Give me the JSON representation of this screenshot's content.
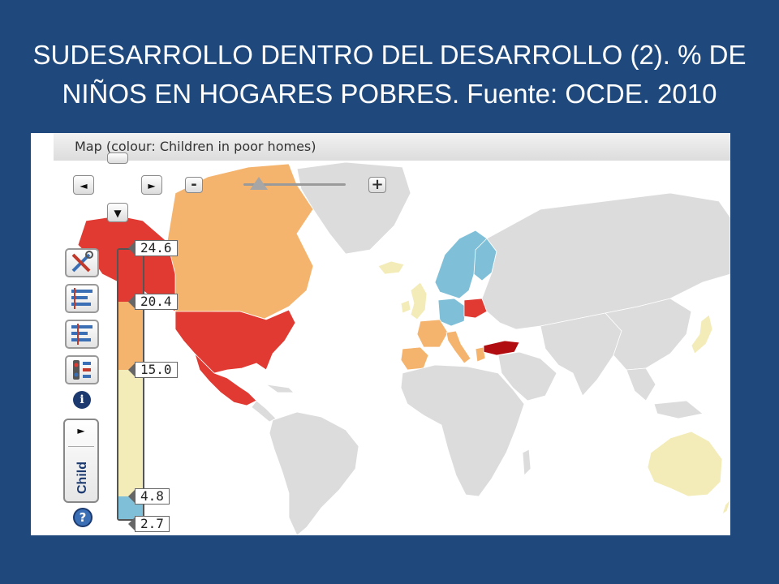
{
  "slide": {
    "title_line1": "SUDESARROLLO DENTRO DEL DESARROLLO (2). % DE",
    "title_line2": "NIÑOS EN HOGARES POBRES. Fuente: OCDE. 2010"
  },
  "panel": {
    "title": "Map (colour: Children in poor homes)"
  },
  "nav": {
    "left": "◄",
    "right": "►",
    "down": "▼",
    "zoom_out": "-",
    "zoom_in": "+"
  },
  "zoom_level": 0.15,
  "legend": {
    "ticks": [
      "24.6",
      "20.4",
      "15.0",
      "4.8",
      "2.7"
    ],
    "colors": [
      "#e03a32",
      "#f4b46e",
      "#f3ecb8",
      "#7fc0d8"
    ]
  },
  "toolbar": {
    "play": "►",
    "child_label": "Child"
  },
  "colors": {
    "background": "#1f497d",
    "no_data": "#dcdcdc",
    "very_high": "#e03a32",
    "dark_red": "#b10d10",
    "high": "#f4b46e",
    "mid": "#f3ecb8",
    "low": "#7fc0d8"
  },
  "map_regions": [
    {
      "name": "Alaska",
      "color_key": "very_high"
    },
    {
      "name": "Canada",
      "color_key": "high"
    },
    {
      "name": "United States",
      "color_key": "very_high"
    },
    {
      "name": "Mexico",
      "color_key": "very_high"
    },
    {
      "name": "Greenland",
      "color_key": "no_data"
    },
    {
      "name": "Iceland",
      "color_key": "mid"
    },
    {
      "name": "Scandinavia",
      "color_key": "low"
    },
    {
      "name": "United Kingdom",
      "color_key": "mid"
    },
    {
      "name": "Ireland",
      "color_key": "mid"
    },
    {
      "name": "France",
      "color_key": "high"
    },
    {
      "name": "Spain",
      "color_key": "high"
    },
    {
      "name": "Portugal",
      "color_key": "high"
    },
    {
      "name": "Germany",
      "color_key": "low"
    },
    {
      "name": "Poland",
      "color_key": "very_high"
    },
    {
      "name": "Italy",
      "color_key": "high"
    },
    {
      "name": "Greece",
      "color_key": "high"
    },
    {
      "name": "Turkey",
      "color_key": "dark_red"
    },
    {
      "name": "Japan",
      "color_key": "mid"
    },
    {
      "name": "Australia",
      "color_key": "mid"
    },
    {
      "name": "New Zealand",
      "color_key": "mid"
    }
  ]
}
